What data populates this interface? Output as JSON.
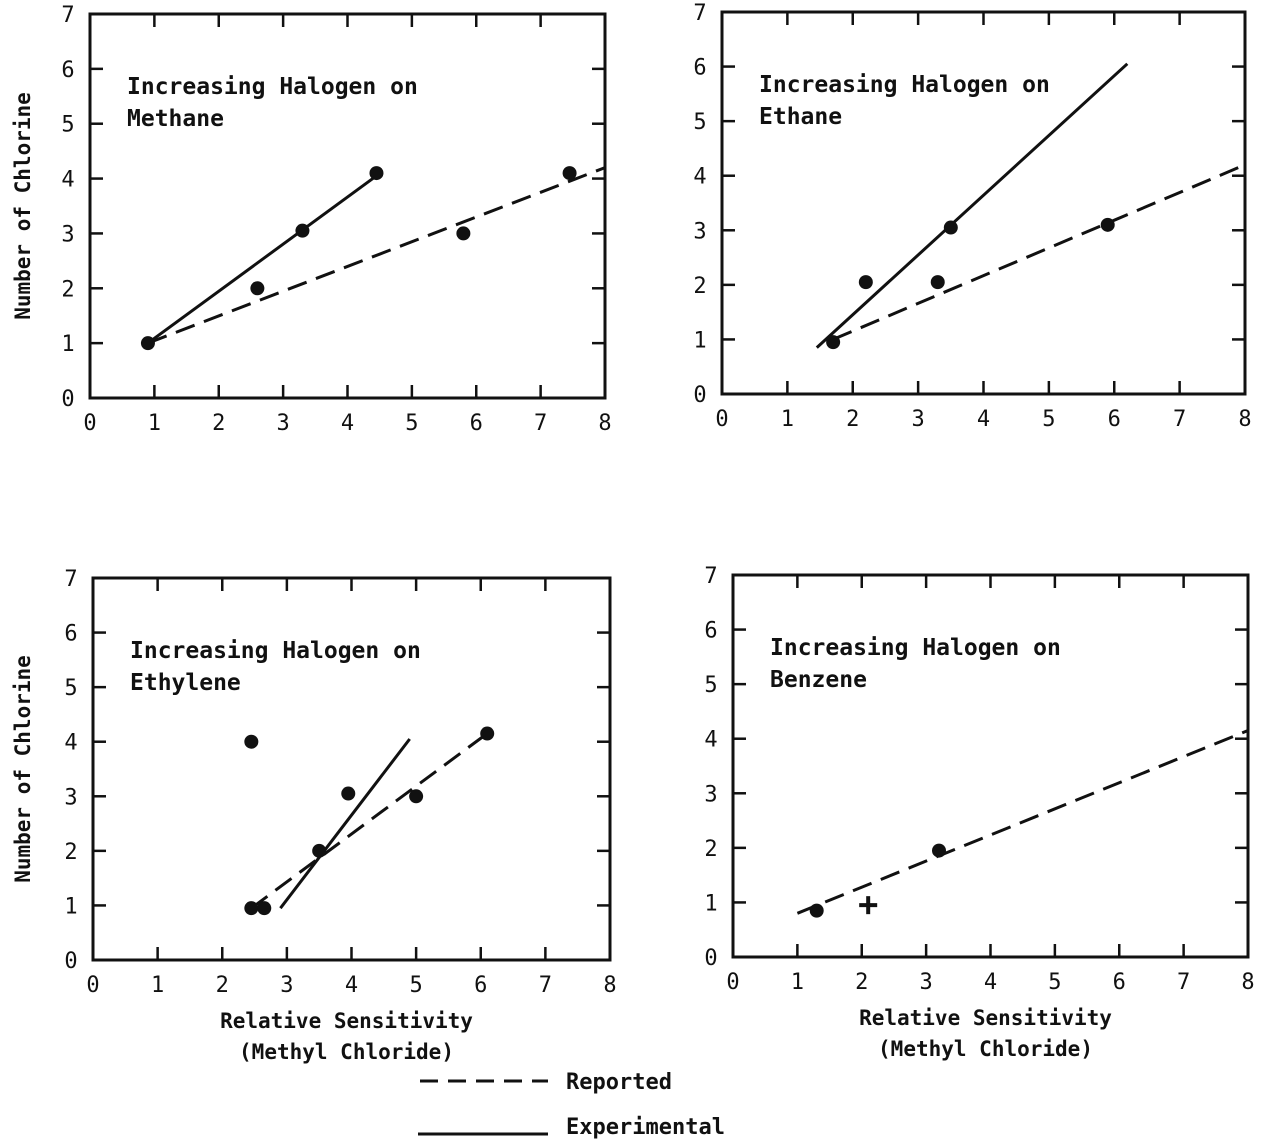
{
  "chart_data": [
    {
      "type": "line",
      "annotation": [
        "Increasing Halogen on",
        "Methane"
      ],
      "xlabel": [
        "",
        ""
      ],
      "ylabel": "Number of Chlorine",
      "xlim": [
        0,
        8
      ],
      "ylim": [
        0,
        7
      ],
      "xticks": [
        0,
        1,
        2,
        3,
        4,
        5,
        6,
        7,
        8
      ],
      "yticks": [
        0,
        1,
        2,
        3,
        4,
        5,
        6,
        7
      ],
      "points": [
        {
          "x": 0.9,
          "y": 1.0,
          "marker": "dot"
        },
        {
          "x": 2.6,
          "y": 2.0,
          "marker": "dot"
        },
        {
          "x": 3.3,
          "y": 3.05,
          "marker": "dot"
        },
        {
          "x": 4.45,
          "y": 4.1,
          "marker": "dot"
        },
        {
          "x": 5.8,
          "y": 3.0,
          "marker": "dot"
        },
        {
          "x": 7.45,
          "y": 4.1,
          "marker": "dot"
        }
      ],
      "series": [
        {
          "name": "Reported",
          "style": "dashed",
          "x": [
            0.9,
            8.0
          ],
          "y": [
            1.0,
            4.2
          ]
        },
        {
          "name": "Experimental",
          "style": "solid",
          "x": [
            0.9,
            4.45
          ],
          "y": [
            1.0,
            4.05
          ]
        }
      ]
    },
    {
      "type": "line",
      "annotation": [
        "Increasing Halogen on",
        "Ethane"
      ],
      "xlabel": [
        "",
        ""
      ],
      "ylabel": "",
      "xlim": [
        0,
        8
      ],
      "ylim": [
        0,
        7
      ],
      "xticks": [
        0,
        1,
        2,
        3,
        4,
        5,
        6,
        7,
        8
      ],
      "yticks": [
        0,
        1,
        2,
        3,
        4,
        5,
        6,
        7
      ],
      "points": [
        {
          "x": 1.7,
          "y": 0.95,
          "marker": "dot"
        },
        {
          "x": 2.2,
          "y": 2.05,
          "marker": "dot"
        },
        {
          "x": 3.3,
          "y": 2.05,
          "marker": "dot"
        },
        {
          "x": 3.5,
          "y": 3.05,
          "marker": "dot"
        },
        {
          "x": 5.9,
          "y": 3.1,
          "marker": "dot"
        }
      ],
      "series": [
        {
          "name": "Reported",
          "style": "dashed",
          "x": [
            1.7,
            8.0
          ],
          "y": [
            1.0,
            4.2
          ]
        },
        {
          "name": "Experimental",
          "style": "solid",
          "x": [
            1.45,
            6.2
          ],
          "y": [
            0.85,
            6.05
          ]
        }
      ]
    },
    {
      "type": "line",
      "annotation": [
        "Increasing Halogen on",
        "Ethylene"
      ],
      "xlabel": [
        "Relative Sensitivity",
        "(Methyl Chloride)"
      ],
      "ylabel": "Number of Chlorine",
      "xlim": [
        0,
        8
      ],
      "ylim": [
        0,
        7
      ],
      "xticks": [
        0,
        1,
        2,
        3,
        4,
        5,
        6,
        7,
        8
      ],
      "yticks": [
        0,
        1,
        2,
        3,
        4,
        5,
        6,
        7
      ],
      "points": [
        {
          "x": 2.45,
          "y": 4.0,
          "marker": "dot"
        },
        {
          "x": 2.45,
          "y": 0.95,
          "marker": "dot"
        },
        {
          "x": 2.65,
          "y": 0.95,
          "marker": "dot"
        },
        {
          "x": 3.5,
          "y": 2.0,
          "marker": "dot"
        },
        {
          "x": 3.95,
          "y": 3.05,
          "marker": "dot"
        },
        {
          "x": 5.0,
          "y": 3.0,
          "marker": "dot"
        },
        {
          "x": 6.1,
          "y": 4.15,
          "marker": "dot"
        }
      ],
      "series": [
        {
          "name": "Reported",
          "style": "dashed",
          "x": [
            2.45,
            6.1
          ],
          "y": [
            0.95,
            4.15
          ]
        },
        {
          "name": "Experimental",
          "style": "solid",
          "x": [
            2.9,
            4.9
          ],
          "y": [
            0.95,
            4.05
          ]
        }
      ]
    },
    {
      "type": "line",
      "annotation": [
        "Increasing Halogen on",
        "Benzene"
      ],
      "xlabel": [
        "Relative Sensitivity",
        "(Methyl Chloride)"
      ],
      "ylabel": "",
      "xlim": [
        0,
        8
      ],
      "ylim": [
        0,
        7
      ],
      "xticks": [
        0,
        1,
        2,
        3,
        4,
        5,
        6,
        7,
        8
      ],
      "yticks": [
        0,
        1,
        2,
        3,
        4,
        5,
        6,
        7
      ],
      "points": [
        {
          "x": 1.3,
          "y": 0.85,
          "marker": "dot"
        },
        {
          "x": 3.2,
          "y": 1.95,
          "marker": "dot"
        },
        {
          "x": 2.1,
          "y": 0.95,
          "marker": "plus"
        }
      ],
      "series": [
        {
          "name": "Reported",
          "style": "dashed",
          "x": [
            1.0,
            8.0
          ],
          "y": [
            0.8,
            4.15
          ]
        }
      ]
    }
  ],
  "legend": {
    "placement": "bottom-center",
    "items": [
      {
        "label": "Reported",
        "style": "dashed"
      },
      {
        "label": "Experimental",
        "style": "solid"
      }
    ]
  }
}
